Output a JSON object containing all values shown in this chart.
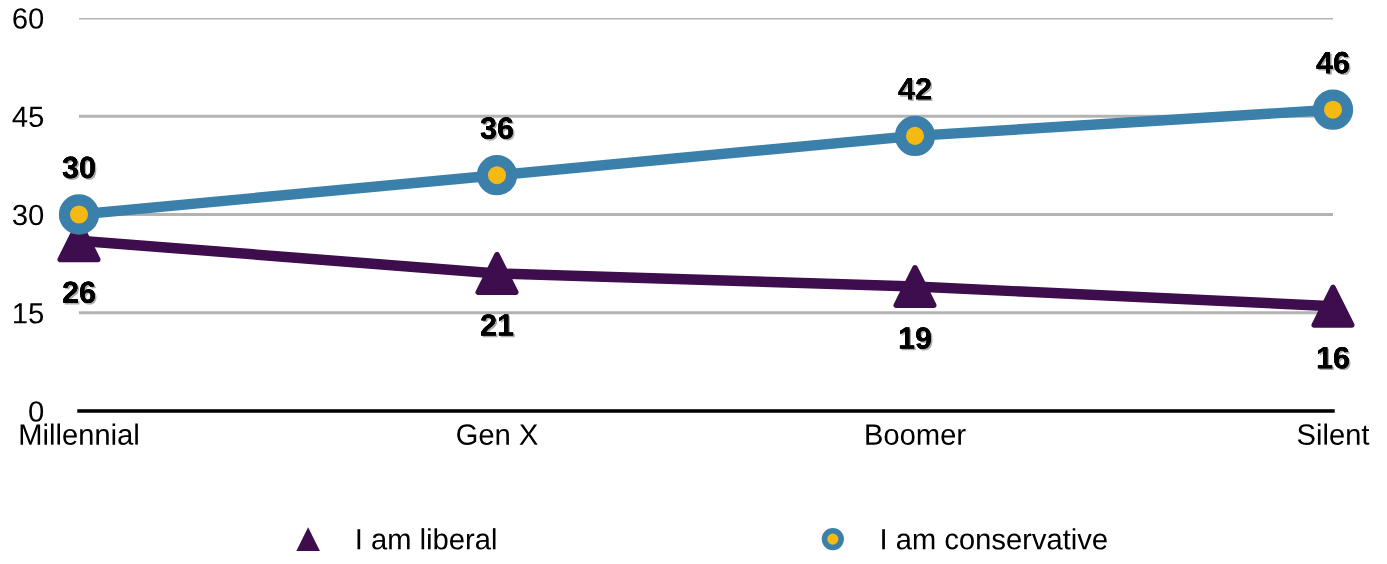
{
  "chart_data": {
    "type": "line",
    "categories": [
      "Millennial",
      "Gen X",
      "Boomer",
      "Silent"
    ],
    "series": [
      {
        "name": "I am liberal",
        "color": "#3d0d4e",
        "marker": "triangle",
        "values": [
          26,
          21,
          19,
          16
        ]
      },
      {
        "name": "I am conservative",
        "color": "#3a80aa",
        "marker": "circle",
        "colors": [
          "#f5b914",
          "#f5b914",
          "#f5b914",
          "#f5b914"
        ],
        "values": [
          30,
          36,
          42,
          46
        ]
      }
    ],
    "ylim": [
      0,
      60
    ],
    "yticks": [
      0,
      15,
      30,
      45,
      60
    ],
    "grid": "y",
    "legend": "bottom",
    "data_labels": true
  }
}
